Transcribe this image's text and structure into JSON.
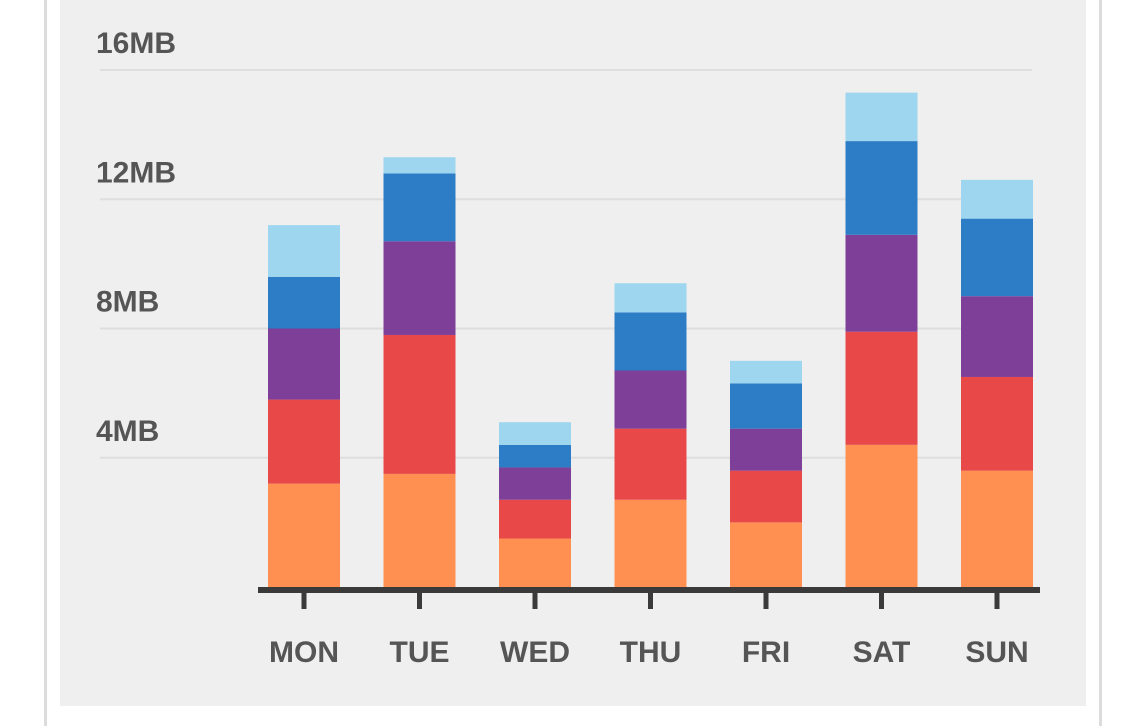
{
  "chart_data": {
    "type": "bar",
    "stacked": true,
    "categories": [
      "MON",
      "TUE",
      "WED",
      "THU",
      "FRI",
      "SAT",
      "SUN"
    ],
    "series": [
      {
        "color": "#FF9052",
        "values": [
          3.2,
          3.5,
          1.5,
          2.7,
          2.0,
          4.4,
          3.6
        ]
      },
      {
        "color": "#E84848",
        "values": [
          2.6,
          4.3,
          1.2,
          2.2,
          1.6,
          3.5,
          2.9
        ]
      },
      {
        "color": "#7E3F98",
        "values": [
          2.2,
          2.9,
          1.0,
          1.8,
          1.3,
          3.0,
          2.5
        ]
      },
      {
        "color": "#2C7CC6",
        "values": [
          1.6,
          2.1,
          0.7,
          1.8,
          1.4,
          2.9,
          2.4
        ]
      },
      {
        "color": "#9FD6EF",
        "values": [
          1.6,
          0.5,
          0.7,
          0.9,
          0.7,
          1.5,
          1.2
        ]
      }
    ],
    "yticks": [
      {
        "value": 4,
        "label": "4MB"
      },
      {
        "value": 8,
        "label": "8MB"
      },
      {
        "value": 12,
        "label": "12MB"
      },
      {
        "value": 16,
        "label": "16MB"
      }
    ],
    "ylim": [
      0,
      16
    ],
    "grid": true
  }
}
